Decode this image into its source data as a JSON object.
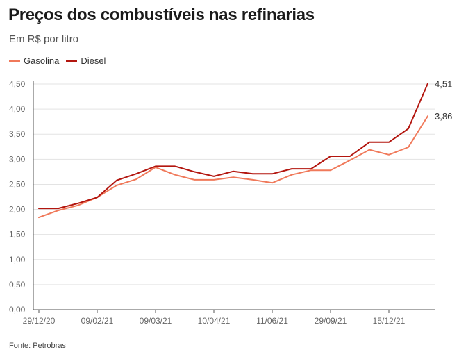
{
  "title": "Preços dos combustíveis nas refinarias",
  "subtitle": "Em R$ por litro",
  "source": "Fonte: Petrobras",
  "chart_data": {
    "type": "line",
    "title": "Preços dos combustíveis nas refinarias",
    "subtitle": "Em R$ por litro",
    "xlabel": "",
    "ylabel": "",
    "ylim": [
      0,
      4.5
    ],
    "yticks": [
      "0,00",
      "0,50",
      "1,00",
      "1,50",
      "2,00",
      "2,50",
      "3,00",
      "3,50",
      "4,00",
      "4,50"
    ],
    "xtick_labels": [
      "29/12/20",
      "09/02/21",
      "09/03/21",
      "10/04/21",
      "11/06/21",
      "29/09/21",
      "15/12/21"
    ],
    "xtick_indices": [
      0,
      3,
      6,
      9,
      12,
      15,
      18
    ],
    "grid": true,
    "legend": "top-left",
    "series": [
      {
        "name": "Gasolina",
        "color": "#f0795a",
        "end_label": "3,86",
        "values": [
          1.84,
          1.98,
          2.08,
          2.24,
          2.48,
          2.6,
          2.84,
          2.69,
          2.59,
          2.59,
          2.64,
          2.59,
          2.53,
          2.69,
          2.78,
          2.78,
          2.98,
          3.19,
          3.09,
          3.24,
          3.86
        ]
      },
      {
        "name": "Diesel",
        "color": "#b3160f",
        "end_label": "4,51",
        "values": [
          2.02,
          2.02,
          2.12,
          2.24,
          2.58,
          2.71,
          2.86,
          2.86,
          2.75,
          2.66,
          2.76,
          2.71,
          2.71,
          2.81,
          2.81,
          3.06,
          3.06,
          3.34,
          3.34,
          3.61,
          4.51
        ]
      }
    ]
  }
}
